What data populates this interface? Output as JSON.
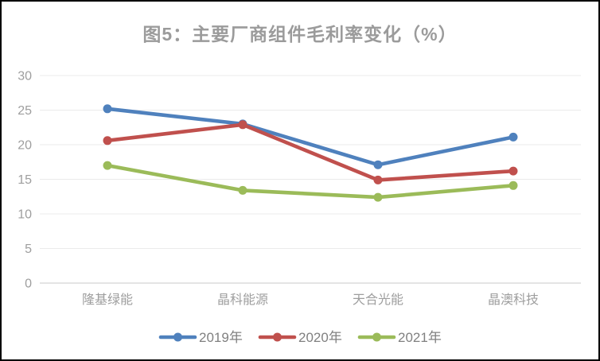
{
  "chart_data": {
    "type": "line",
    "title": "图5：主要厂商组件毛利率变化（%）",
    "categories": [
      "隆基绿能",
      "晶科能源",
      "天合光能",
      "晶澳科技"
    ],
    "series": [
      {
        "name": "2019年",
        "color": "#4F81BD",
        "values": [
          25.2,
          23.0,
          17.1,
          21.1
        ]
      },
      {
        "name": "2020年",
        "color": "#C0504D",
        "values": [
          20.6,
          22.9,
          14.9,
          16.2
        ]
      },
      {
        "name": "2021年",
        "color": "#9BBB59",
        "values": [
          17.0,
          13.4,
          12.4,
          14.1
        ]
      }
    ],
    "ylim": [
      0,
      30
    ],
    "y_ticks": [
      0,
      5,
      10,
      15,
      20,
      25,
      30
    ],
    "grid": "horizontal",
    "legend_position": "bottom"
  },
  "colors": {
    "title_text": "#9B9B9B",
    "axis_text": "#9E9E9E",
    "legend_text": "#808080",
    "gridline": "#EBEBEB",
    "axis_line": "#C9C9C9",
    "frame_border": "#000000",
    "background": "#FFFFFF"
  }
}
